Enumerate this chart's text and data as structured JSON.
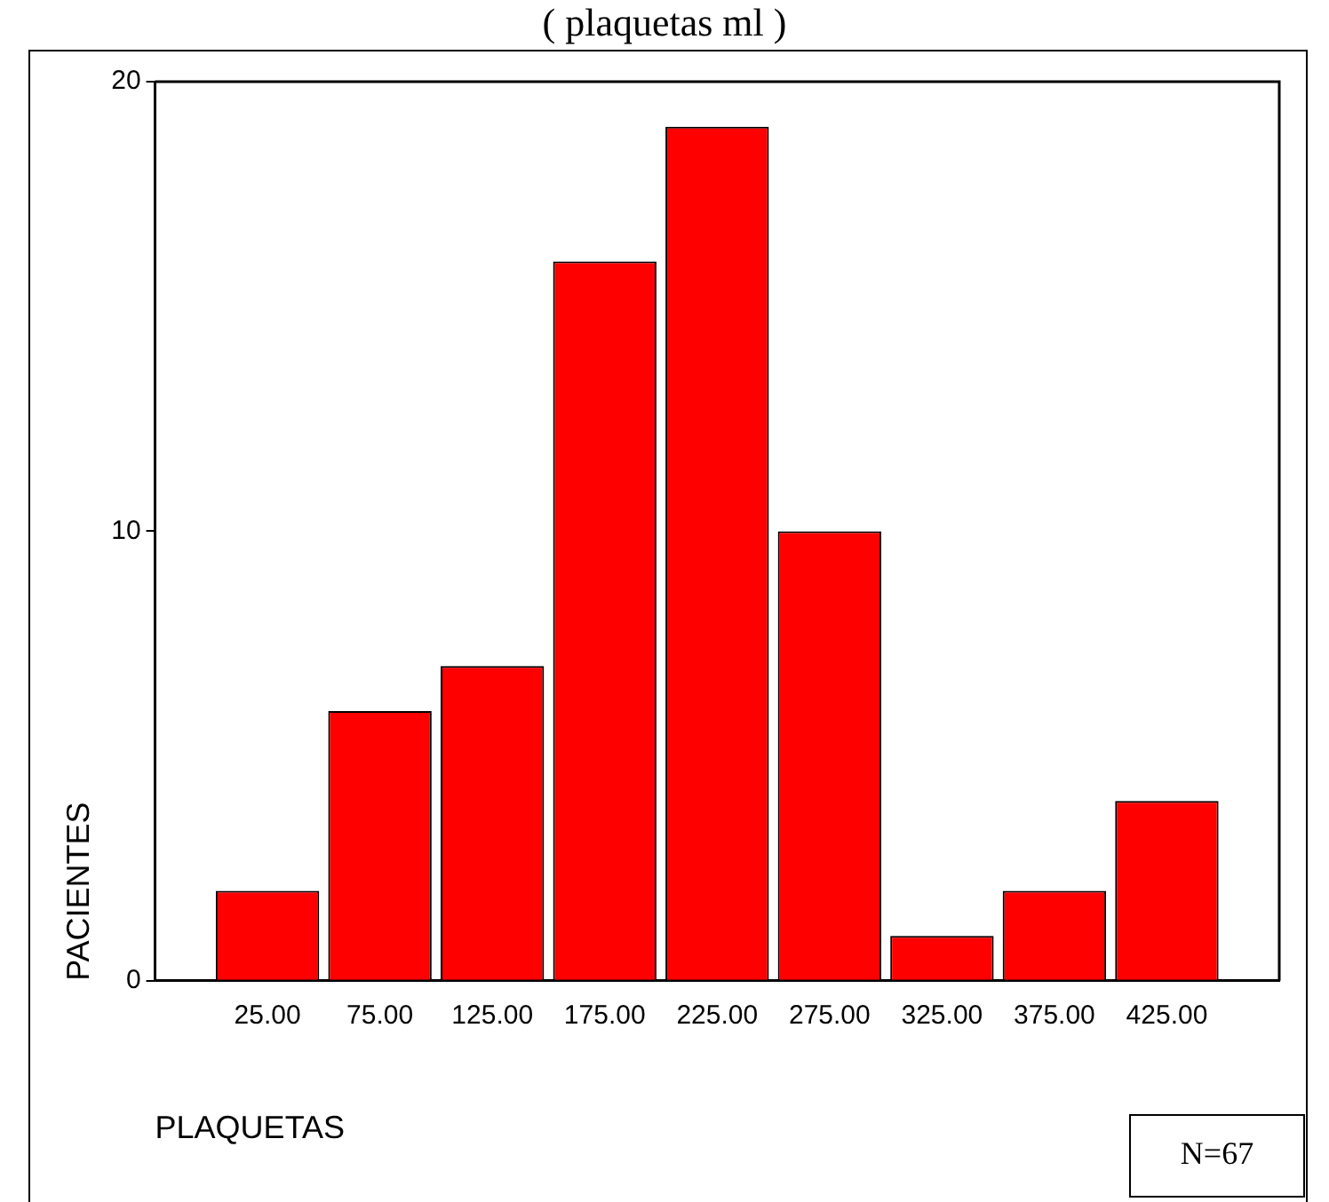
{
  "chart_data": {
    "type": "histogram",
    "title": "( plaquetas ml )",
    "xlabel": "PLAQUETAS",
    "ylabel": "PACIENTES",
    "bins": [
      0,
      50,
      100,
      150,
      200,
      250,
      300,
      350,
      400,
      450
    ],
    "values": [
      2,
      6,
      7,
      16,
      19,
      10,
      1,
      2,
      4
    ],
    "color": "#ff0000",
    "xlim": [
      -25,
      475
    ],
    "xticks": [
      {
        "value": 25,
        "label": "25.00"
      },
      {
        "value": 75,
        "label": "75.00"
      },
      {
        "value": 125,
        "label": "125.00"
      },
      {
        "value": 175,
        "label": "175.00"
      },
      {
        "value": 225,
        "label": "225.00"
      },
      {
        "value": 275,
        "label": "275.00"
      },
      {
        "value": 325,
        "label": "325.00"
      },
      {
        "value": 375,
        "label": "375.00"
      },
      {
        "value": 425,
        "label": "425.00"
      }
    ],
    "ylim": [
      0,
      20
    ],
    "yticks": [
      0,
      10,
      20
    ],
    "annotations": [
      "N=67"
    ],
    "grid": false,
    "legend": false
  }
}
